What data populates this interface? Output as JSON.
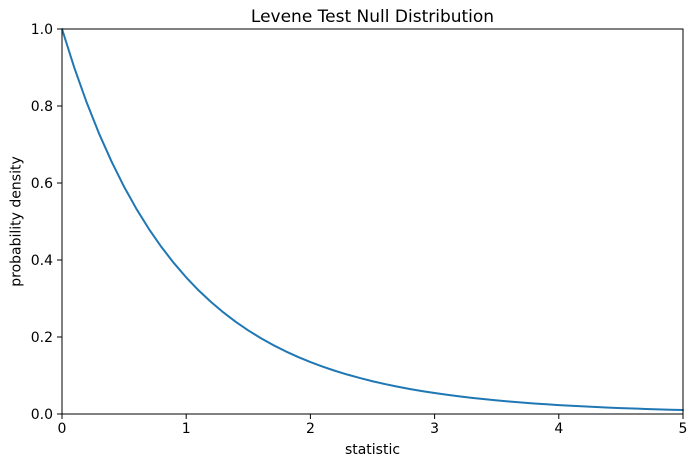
{
  "chart_data": {
    "type": "line",
    "title": "Levene Test Null Distribution",
    "xlabel": "statistic",
    "ylabel": "probability density",
    "xlim": [
      0,
      5
    ],
    "ylim": [
      0,
      1.0
    ],
    "x_ticks": [
      0,
      1,
      2,
      3,
      4,
      5
    ],
    "x_tick_labels": [
      "0",
      "1",
      "2",
      "3",
      "4",
      "5"
    ],
    "y_ticks": [
      0.0,
      0.2,
      0.4,
      0.6,
      0.8,
      1.0
    ],
    "y_tick_labels": [
      "0.0",
      "0.2",
      "0.4",
      "0.6",
      "0.8",
      "1.0"
    ],
    "grid": false,
    "legend": "none",
    "line_color": "#1f77b4",
    "background_color": "#ffffff",
    "axis_color": "#000000",
    "series": [
      {
        "x": [
          0,
          0.1,
          0.2,
          0.3,
          0.4,
          0.5,
          0.6,
          0.7,
          0.8,
          0.9,
          1.0,
          1.1,
          1.2,
          1.3,
          1.4,
          1.5,
          1.6,
          1.7,
          1.8,
          1.9,
          2.0,
          2.1,
          2.2,
          2.3,
          2.4,
          2.5,
          2.6,
          2.7,
          2.8,
          2.9,
          3.0,
          3.1,
          3.2,
          3.3,
          3.4,
          3.5,
          3.6,
          3.7,
          3.8,
          3.9,
          4.0,
          4.1,
          4.2,
          4.3,
          4.4,
          4.5,
          4.6,
          4.7,
          4.8,
          4.9,
          5.0
        ],
        "y": [
          1.0,
          0.8985,
          0.808,
          0.7271,
          0.655,
          0.5902,
          0.5323,
          0.4805,
          0.434,
          0.3923,
          0.3548,
          0.3211,
          0.2909,
          0.2637,
          0.2391,
          0.217,
          0.1971,
          0.1791,
          0.1629,
          0.1482,
          0.1349,
          0.1229,
          0.112,
          0.1022,
          0.0933,
          0.0851,
          0.0778,
          0.0711,
          0.065,
          0.0595,
          0.0545,
          0.0499,
          0.0457,
          0.0419,
          0.0385,
          0.0354,
          0.0325,
          0.0298,
          0.0274,
          0.0252,
          0.0232,
          0.0214,
          0.0197,
          0.0182,
          0.0167,
          0.0154,
          0.0143,
          0.0131,
          0.0121,
          0.0112,
          0.0104
        ]
      }
    ]
  }
}
